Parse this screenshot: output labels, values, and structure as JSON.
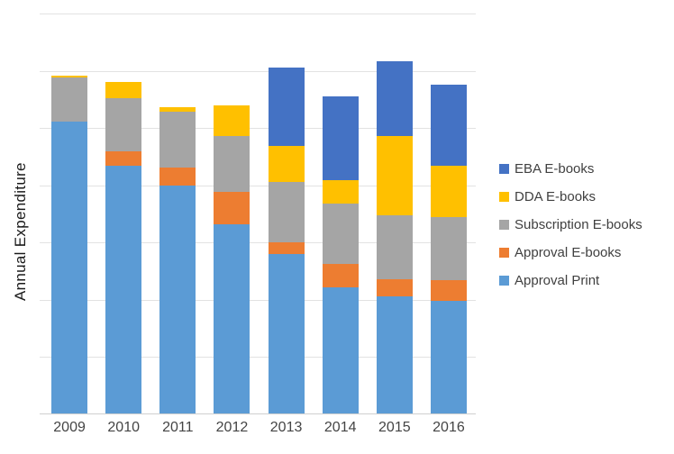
{
  "chart_data": {
    "type": "bar",
    "stacked": true,
    "title": "",
    "xlabel": "",
    "ylabel": "Annual Expenditure",
    "categories": [
      "2009",
      "2010",
      "2011",
      "2012",
      "2013",
      "2014",
      "2015",
      "2016"
    ],
    "value_units": "relative (y-axis shows no numeric tick labels; values are percent of axis height)",
    "ylim": [
      0,
      100
    ],
    "grid": true,
    "legend_position": "right",
    "series": [
      {
        "name": "Approval Print",
        "color": "#5B9BD5",
        "values": [
          73.0,
          62.0,
          57.1,
          47.4,
          40.0,
          31.7,
          29.4,
          28.3
        ]
      },
      {
        "name": "Approval E-books",
        "color": "#ED7D31",
        "values": [
          0,
          3.6,
          4.5,
          8.1,
          2.9,
          5.8,
          4.3,
          5.2
        ]
      },
      {
        "name": "Subscription E-books",
        "color": "#A5A5A5",
        "values": [
          11.0,
          13.3,
          13.9,
          13.9,
          15.1,
          15.1,
          16.0,
          15.7
        ]
      },
      {
        "name": "DDA E-books",
        "color": "#FFC000",
        "values": [
          0.5,
          4.0,
          1.1,
          7.6,
          9.0,
          5.8,
          19.8,
          12.8
        ]
      },
      {
        "name": "EBA E-books",
        "color": "#4472C4",
        "values": [
          0,
          0,
          0,
          0,
          19.6,
          20.9,
          18.7,
          20.2
        ]
      }
    ],
    "legend_order_top_to_bottom": [
      "EBA E-books",
      "DDA E-books",
      "Subscription E-books",
      "Approval E-books",
      "Approval Print"
    ]
  },
  "colors": {
    "gridline": "#e2e2e2",
    "axis_line": "#d0d0d0",
    "axis_label_text": "#444444",
    "legend_text": "#404040",
    "y_title_text": "#1a1a1a",
    "background": "#ffffff"
  }
}
